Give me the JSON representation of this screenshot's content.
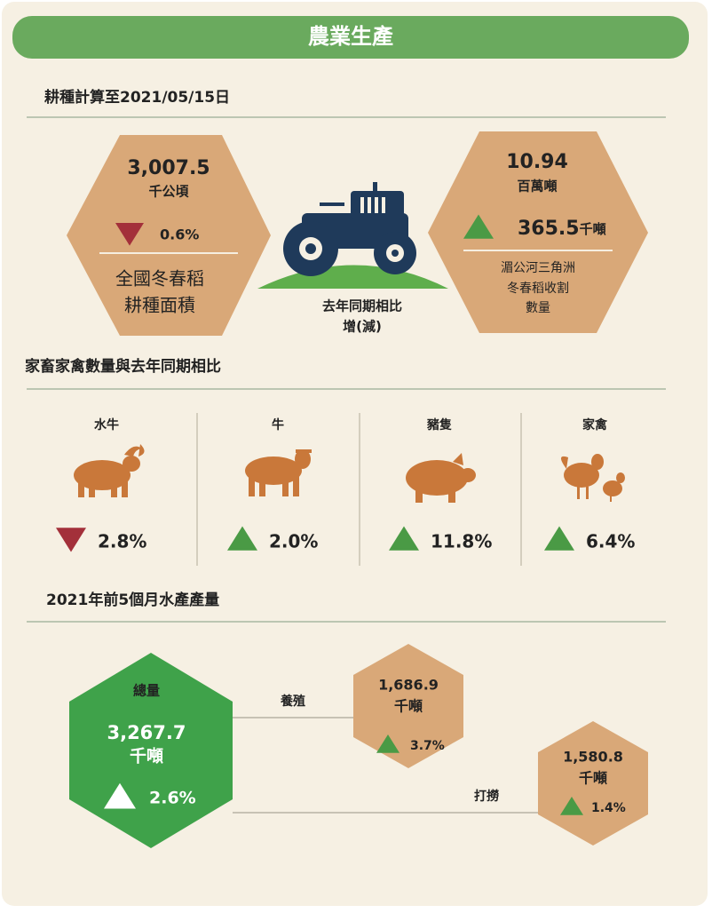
{
  "header": {
    "title": "農業生產"
  },
  "planting": {
    "heading": "耕種計算至2021/05/15日",
    "left": {
      "value": "3,007.5",
      "unit": "千公頃",
      "change": "0.6%",
      "direction": "down",
      "label": [
        "全國冬春稻",
        "耕種面積"
      ]
    },
    "compare_label": [
      "去年同期相比",
      "增(減)"
    ],
    "right": {
      "value": "10.94",
      "unit": "百萬噸",
      "change": "365.5",
      "change_unit": "千噸",
      "direction": "up",
      "label": [
        "湄公河三角洲",
        "冬春稻收割",
        "數量"
      ]
    }
  },
  "livestock": {
    "heading": "家畜家禽數量與去年同期相比",
    "items": [
      {
        "name": "水牛",
        "change": "2.8%",
        "direction": "down"
      },
      {
        "name": "牛",
        "change": "2.0%",
        "direction": "up"
      },
      {
        "name": "豬隻",
        "change": "11.8%",
        "direction": "up"
      },
      {
        "name": "家禽",
        "change": "6.4%",
        "direction": "up"
      }
    ]
  },
  "aquatic": {
    "heading": "2021年前5個月水產產量",
    "total": {
      "label": "總量",
      "value": "3,267.7",
      "unit": "千噸",
      "change": "2.6%",
      "direction": "up"
    },
    "farming": {
      "label": "養殖",
      "value": "1,686.9",
      "unit": "千噸",
      "change": "3.7%",
      "direction": "up"
    },
    "fishing": {
      "label": "打撈",
      "value": "1,580.8",
      "unit": "千噸",
      "change": "1.4%",
      "direction": "up"
    }
  },
  "colors": {
    "up": "#4a9a45",
    "down": "#a3303a",
    "up_on_green": "#ffffff"
  }
}
